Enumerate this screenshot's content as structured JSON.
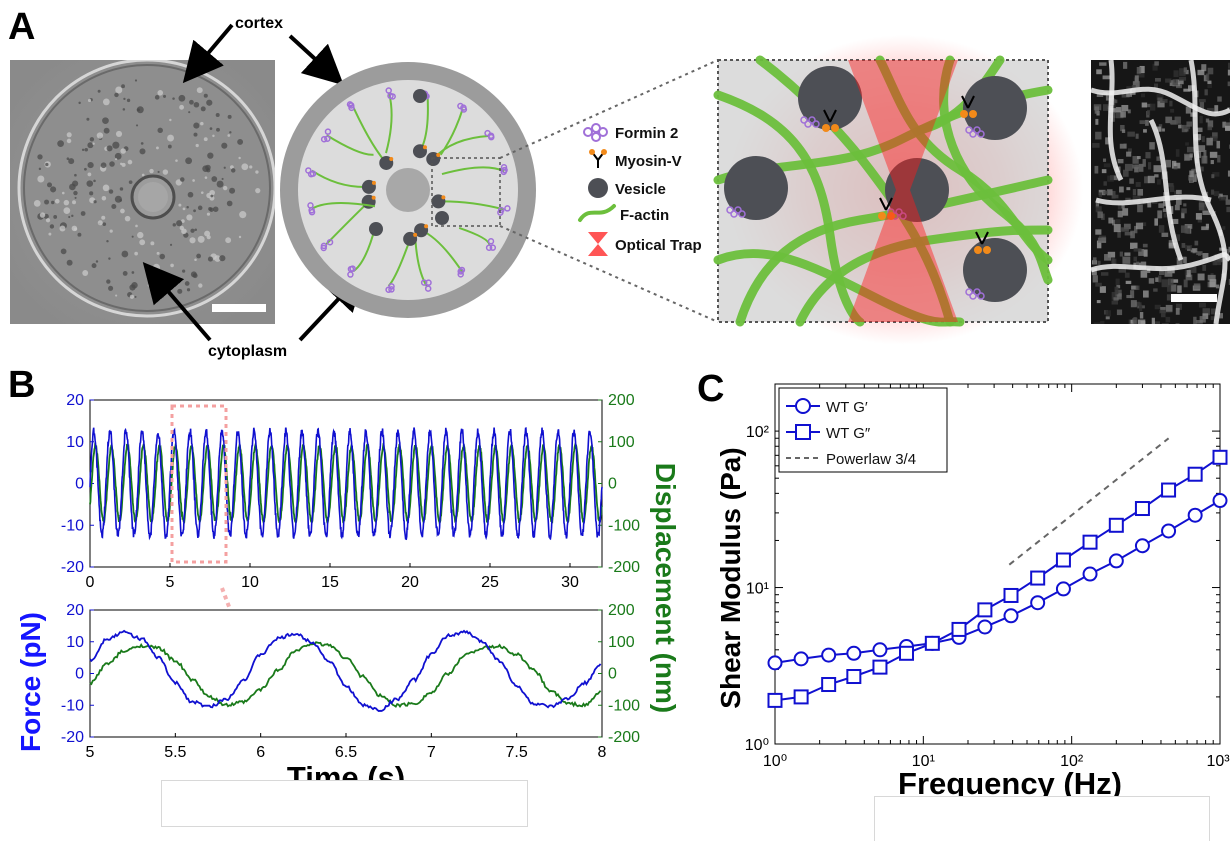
{
  "panels": {
    "a": "A",
    "b": "B",
    "c": "C"
  },
  "panel_a": {
    "label_cortex": "cortex",
    "label_cytoplasm": "cytoplasm",
    "legend": [
      {
        "icon": "formin-icon",
        "label": "Formin 2"
      },
      {
        "icon": "myosin-icon",
        "label": "Myosin-V"
      },
      {
        "icon": "vesicle-icon",
        "label": "Vesicle"
      },
      {
        "icon": "actin-icon",
        "label": "F-actin"
      },
      {
        "icon": "trap-icon",
        "label": "Optical Trap"
      }
    ],
    "colors": {
      "actin": "#6cbf3c",
      "vesicle": "#4d4f55",
      "formin": "#a070d8",
      "myosin_tip": "#f28a1a",
      "trap": "#ff2a2a",
      "cell_outer": "#9c9c9c",
      "cell_inner": "#dcdcdc"
    }
  },
  "panel_b": {
    "force_label": "Force (pN)",
    "displacement_label": "Displacement (nm)",
    "time_label": "Time (s)",
    "colors": {
      "force": "#1010d0",
      "displacement": "#1a7a1a",
      "zoom_box": "#f4a0a0"
    },
    "top_chart": {
      "x_ticks": [
        "0",
        "5",
        "10",
        "15",
        "20",
        "25",
        "30"
      ],
      "xlim": [
        0,
        32
      ],
      "left_ticks": [
        "20",
        "10",
        "0",
        "-10",
        "-20"
      ],
      "right_ticks": [
        "200",
        "100",
        "0",
        "-100",
        "-200"
      ]
    },
    "bottom_chart": {
      "x_ticks": [
        "5",
        "5.5",
        "6",
        "6.5",
        "7",
        "7.5",
        "8"
      ],
      "xlim": [
        5,
        8
      ],
      "left_ticks": [
        "20",
        "10",
        "0",
        "-10",
        "-20"
      ],
      "right_ticks": [
        "200",
        "100",
        "0",
        "-100",
        "-200"
      ]
    }
  },
  "panel_c": {
    "ylabel": "Shear Modulus (Pa)",
    "xlabel": "Frequency (Hz)",
    "legend": [
      "WT G′",
      "WT G″",
      "Powerlaw 3/4"
    ],
    "x_ticks": [
      "10⁰",
      "10¹",
      "10²",
      "10³"
    ],
    "y_ticks": [
      "10⁰",
      "10¹",
      "10²"
    ]
  },
  "chart_data": [
    {
      "type": "line",
      "title": "",
      "xlabel": "Time (s)",
      "ylabel": "Force (pN)",
      "y2label": "Displacement (nm)",
      "xlim": [
        0,
        32
      ],
      "ylim": [
        -20,
        20
      ],
      "y2lim": [
        -200,
        200
      ],
      "frequency_hz": 1,
      "series": [
        {
          "name": "Force (pN)",
          "axis": "left",
          "amplitude": 12.5,
          "color": "#1010d0"
        },
        {
          "name": "Displacement (nm)",
          "axis": "right",
          "amplitude": 90,
          "color": "#1a7a1a"
        }
      ]
    },
    {
      "type": "line",
      "title": "",
      "xlabel": "Time (s)",
      "ylabel": "Force (pN)",
      "y2label": "Displacement (nm)",
      "xlim": [
        5,
        8
      ],
      "ylim": [
        -20,
        20
      ],
      "y2lim": [
        -200,
        200
      ],
      "series": [
        {
          "name": "Force (pN)",
          "axis": "left",
          "x": [
            5.0,
            5.1,
            5.2,
            5.3,
            5.4,
            5.5,
            5.6,
            5.7,
            5.8,
            5.9,
            6.0,
            6.1,
            6.2,
            6.3,
            6.4,
            6.5,
            6.6,
            6.7,
            6.8,
            6.9,
            7.0,
            7.1,
            7.2,
            7.3,
            7.4,
            7.5,
            7.6,
            7.7,
            7.8,
            7.9,
            8.0
          ],
          "y": [
            4,
            11,
            13,
            11,
            5,
            -3,
            -9,
            -10.5,
            -8,
            -2,
            6,
            11,
            12.5,
            10,
            4,
            -4,
            -10,
            -11.5,
            -8,
            -2,
            6,
            12,
            13,
            10,
            4,
            -4,
            -9.5,
            -10.5,
            -8,
            -3,
            3
          ]
        },
        {
          "name": "Displacement (nm)",
          "axis": "right",
          "x": [
            5.0,
            5.1,
            5.2,
            5.3,
            5.4,
            5.5,
            5.6,
            5.7,
            5.8,
            5.9,
            6.0,
            6.1,
            6.2,
            6.3,
            6.4,
            6.5,
            6.6,
            6.7,
            6.8,
            6.9,
            7.0,
            7.1,
            7.2,
            7.3,
            7.4,
            7.5,
            7.6,
            7.7,
            7.8,
            7.9,
            8.0
          ],
          "y": [
            -30,
            30,
            70,
            88,
            80,
            40,
            -20,
            -75,
            -100,
            -90,
            -50,
            10,
            70,
            95,
            90,
            50,
            -10,
            -70,
            -100,
            -95,
            -60,
            0,
            60,
            80,
            85,
            60,
            10,
            -55,
            -95,
            -100,
            -55
          ]
        }
      ]
    },
    {
      "type": "line",
      "title": "",
      "xlabel": "Frequency (Hz)",
      "ylabel": "Shear Modulus (Pa)",
      "xscale": "log",
      "yscale": "log",
      "xlim": [
        1,
        1000
      ],
      "ylim": [
        1,
        200
      ],
      "series": [
        {
          "name": "WT G′",
          "marker": "circle",
          "x": [
            1,
            1.5,
            2.3,
            3.4,
            5.1,
            7.7,
            11.5,
            17.4,
            26,
            39,
            59,
            88,
            133,
            200,
            300,
            450,
            680,
            1000
          ],
          "y": [
            3.3,
            3.5,
            3.7,
            3.8,
            4.0,
            4.2,
            4.4,
            4.8,
            5.6,
            6.6,
            8.0,
            9.8,
            12.2,
            14.8,
            18.5,
            23,
            29,
            36
          ]
        },
        {
          "name": "WT G″",
          "marker": "square",
          "x": [
            1,
            1.5,
            2.3,
            3.4,
            5.1,
            7.7,
            11.5,
            17.4,
            26,
            39,
            59,
            88,
            133,
            200,
            300,
            450,
            680,
            1000
          ],
          "y": [
            1.9,
            2.0,
            2.4,
            2.7,
            3.1,
            3.8,
            4.4,
            5.4,
            7.2,
            8.9,
            11.5,
            15,
            19.5,
            25,
            32,
            42,
            53,
            68
          ]
        },
        {
          "name": "Powerlaw 3/4",
          "style": "dashed",
          "x": [
            38,
            450
          ],
          "y": [
            14,
            90
          ]
        }
      ]
    }
  ]
}
